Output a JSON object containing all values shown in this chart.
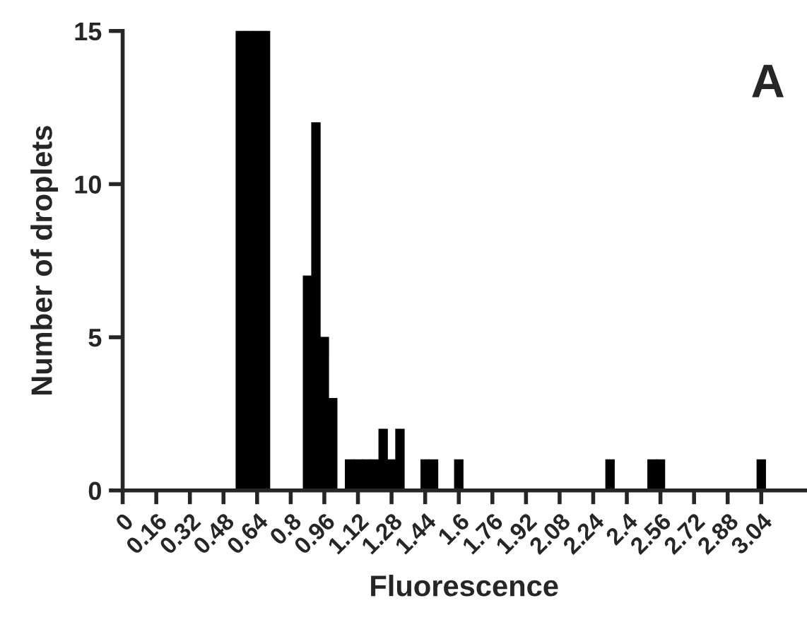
{
  "chart_data": {
    "type": "histogram",
    "xlabel": "Fluorescence",
    "ylabel": "Number of droplets",
    "annotations": [
      "A"
    ],
    "bins": [
      0.54,
      0.58,
      0.62,
      0.66,
      0.7,
      0.74,
      0.78,
      0.82,
      0.86,
      0.9,
      0.94,
      0.98,
      1.02,
      1.06,
      1.1,
      1.14,
      1.18,
      1.22,
      1.26,
      1.3,
      1.34,
      1.38,
      1.42,
      1.46,
      1.5,
      1.54,
      1.58,
      1.62,
      1.66,
      1.7,
      1.74,
      1.78,
      1.82,
      1.86,
      1.9,
      1.94,
      1.98,
      2.02,
      2.06,
      2.1,
      2.14,
      2.18,
      2.22,
      2.26,
      2.3,
      2.34,
      2.38,
      2.42,
      2.46,
      2.5,
      2.54,
      2.58,
      2.62,
      2.66,
      2.7,
      2.74,
      2.78,
      2.82,
      2.86,
      2.9,
      2.94,
      2.98,
      3.02,
      3.06
    ],
    "values": [
      15,
      15,
      15,
      15,
      0,
      0,
      0,
      0,
      7,
      12,
      5,
      3,
      0,
      1,
      1,
      1,
      1,
      2,
      1,
      2,
      0,
      0,
      1,
      1,
      0,
      0,
      1,
      0,
      0,
      0,
      0,
      0,
      0,
      0,
      0,
      0,
      0,
      0,
      0,
      0,
      0,
      0,
      0,
      0,
      1,
      0,
      0,
      0,
      0,
      1,
      1,
      0,
      0,
      0,
      0,
      0,
      0,
      0,
      0,
      0,
      0,
      0,
      1
    ],
    "color": "#000000",
    "xlim": [
      0,
      3.25
    ],
    "ylim": [
      0,
      15
    ],
    "xticks": [
      0,
      0.16,
      0.32,
      0.48,
      0.64,
      0.8,
      0.96,
      1.12,
      1.28,
      1.44,
      1.6,
      1.76,
      1.92,
      2.08,
      2.24,
      2.4,
      2.56,
      2.72,
      2.88,
      3.04
    ],
    "yticks": [
      0,
      5,
      10,
      15
    ],
    "grid": false,
    "legend": false
  }
}
